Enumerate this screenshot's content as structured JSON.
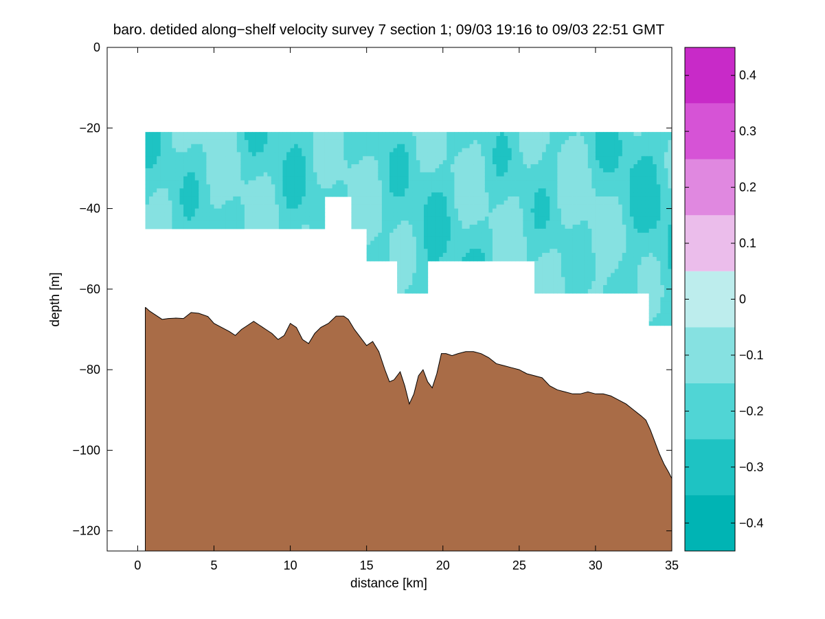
{
  "chart_data": {
    "type": "contour",
    "title": "baro. detided along−shelf velocity survey 7 section 1; 09/03 19:16 to 09/03 22:51 GMT",
    "xlabel": "distance [km]",
    "ylabel": "depth [m]",
    "xlim": [
      -2,
      35
    ],
    "ylim": [
      -125,
      0
    ],
    "x_ticks": [
      0,
      5,
      10,
      15,
      20,
      25,
      30,
      35
    ],
    "x_tick_labels": [
      "0",
      "5",
      "10",
      "15",
      "20",
      "25",
      "30",
      "35"
    ],
    "y_ticks": [
      0,
      -20,
      -40,
      -60,
      -80,
      -100,
      -120
    ],
    "y_tick_labels": [
      "0",
      "−20",
      "−40",
      "−60",
      "−80",
      "−100",
      "−120"
    ],
    "colorbar": {
      "levels": [
        -0.45,
        -0.35,
        -0.25,
        -0.15,
        -0.05,
        0.05,
        0.15,
        0.25,
        0.35,
        0.45
      ],
      "colors": [
        "#00b4b4",
        "#1ec3c3",
        "#50d5d5",
        "#86e1e1",
        "#bdeded",
        "#ebbdeb",
        "#e088e0",
        "#d653d6",
        "#c82ac8",
        "#b400b4"
      ],
      "ticks": [
        0.4,
        0.3,
        0.2,
        0.1,
        0,
        -0.1,
        -0.2,
        -0.3,
        -0.4
      ],
      "tick_labels": [
        "0.4",
        "0.3",
        "0.2",
        "0.1",
        "0",
        "−0.1",
        "−0.2",
        "−0.3",
        "−0.4"
      ]
    },
    "data_region": {
      "top_depth": -21,
      "bottom_profile": [
        [
          0.5,
          -45
        ],
        [
          12.1,
          -45
        ],
        [
          12.1,
          -37
        ],
        [
          14,
          -37
        ],
        [
          14,
          -45
        ],
        [
          15,
          -45
        ],
        [
          15,
          -53
        ],
        [
          17,
          -53
        ],
        [
          17,
          -61
        ],
        [
          19,
          -61
        ],
        [
          19,
          -53
        ],
        [
          26,
          -53
        ],
        [
          26,
          -61
        ],
        [
          33.3,
          -61
        ],
        [
          33.3,
          -69
        ],
        [
          35,
          -69
        ]
      ]
    },
    "bathymetry_color": "#a96c47",
    "bathymetry": [
      [
        0.5,
        -64.5
      ],
      [
        0.8,
        -65.5
      ],
      [
        1.2,
        -66.5
      ],
      [
        1.6,
        -67.5
      ],
      [
        2,
        -67.3
      ],
      [
        2.5,
        -67.2
      ],
      [
        3,
        -67.3
      ],
      [
        3.5,
        -65.8
      ],
      [
        4,
        -66
      ],
      [
        4.6,
        -66.8
      ],
      [
        5,
        -68.5
      ],
      [
        5.5,
        -69.5
      ],
      [
        6,
        -70.5
      ],
      [
        6.4,
        -71.5
      ],
      [
        6.8,
        -70
      ],
      [
        7.2,
        -69
      ],
      [
        7.6,
        -68
      ],
      [
        8,
        -69
      ],
      [
        8.4,
        -70
      ],
      [
        8.8,
        -71
      ],
      [
        9.2,
        -72.5
      ],
      [
        9.6,
        -71.5
      ],
      [
        10,
        -68.5
      ],
      [
        10.4,
        -69.5
      ],
      [
        10.8,
        -72.5
      ],
      [
        11.2,
        -73.5
      ],
      [
        11.6,
        -71
      ],
      [
        12,
        -69.5
      ],
      [
        12.5,
        -68.5
      ],
      [
        13,
        -66.7
      ],
      [
        13.5,
        -66.7
      ],
      [
        13.8,
        -67.5
      ],
      [
        14.2,
        -70
      ],
      [
        14.6,
        -72
      ],
      [
        15,
        -74
      ],
      [
        15.4,
        -73
      ],
      [
        15.8,
        -75.5
      ],
      [
        16.2,
        -80
      ],
      [
        16.5,
        -83
      ],
      [
        16.8,
        -82.5
      ],
      [
        17.2,
        -80.5
      ],
      [
        17.5,
        -84
      ],
      [
        17.8,
        -88.5
      ],
      [
        18.1,
        -86
      ],
      [
        18.4,
        -81.5
      ],
      [
        18.7,
        -80
      ],
      [
        19,
        -83
      ],
      [
        19.3,
        -84.5
      ],
      [
        19.6,
        -81
      ],
      [
        19.9,
        -76
      ],
      [
        20.2,
        -76
      ],
      [
        20.6,
        -76.5
      ],
      [
        21,
        -76
      ],
      [
        21.5,
        -75.5
      ],
      [
        22,
        -75.5
      ],
      [
        22.5,
        -76
      ],
      [
        23,
        -77
      ],
      [
        23.5,
        -78.5
      ],
      [
        24,
        -79
      ],
      [
        24.5,
        -79.5
      ],
      [
        25,
        -80
      ],
      [
        25.5,
        -81
      ],
      [
        26,
        -81.5
      ],
      [
        26.5,
        -82
      ],
      [
        27,
        -84
      ],
      [
        27.5,
        -85
      ],
      [
        28,
        -85.5
      ],
      [
        28.5,
        -86
      ],
      [
        29,
        -86
      ],
      [
        29.5,
        -85.5
      ],
      [
        30,
        -86
      ],
      [
        30.5,
        -86
      ],
      [
        31,
        -86.5
      ],
      [
        31.5,
        -87.5
      ],
      [
        32,
        -88.5
      ],
      [
        32.5,
        -90
      ],
      [
        33,
        -91.5
      ],
      [
        33.3,
        -92.5
      ],
      [
        33.6,
        -95
      ],
      [
        33.9,
        -98
      ],
      [
        34.2,
        -101
      ],
      [
        34.5,
        -103.5
      ],
      [
        34.8,
        -105.5
      ],
      [
        35,
        -107
      ]
    ]
  }
}
